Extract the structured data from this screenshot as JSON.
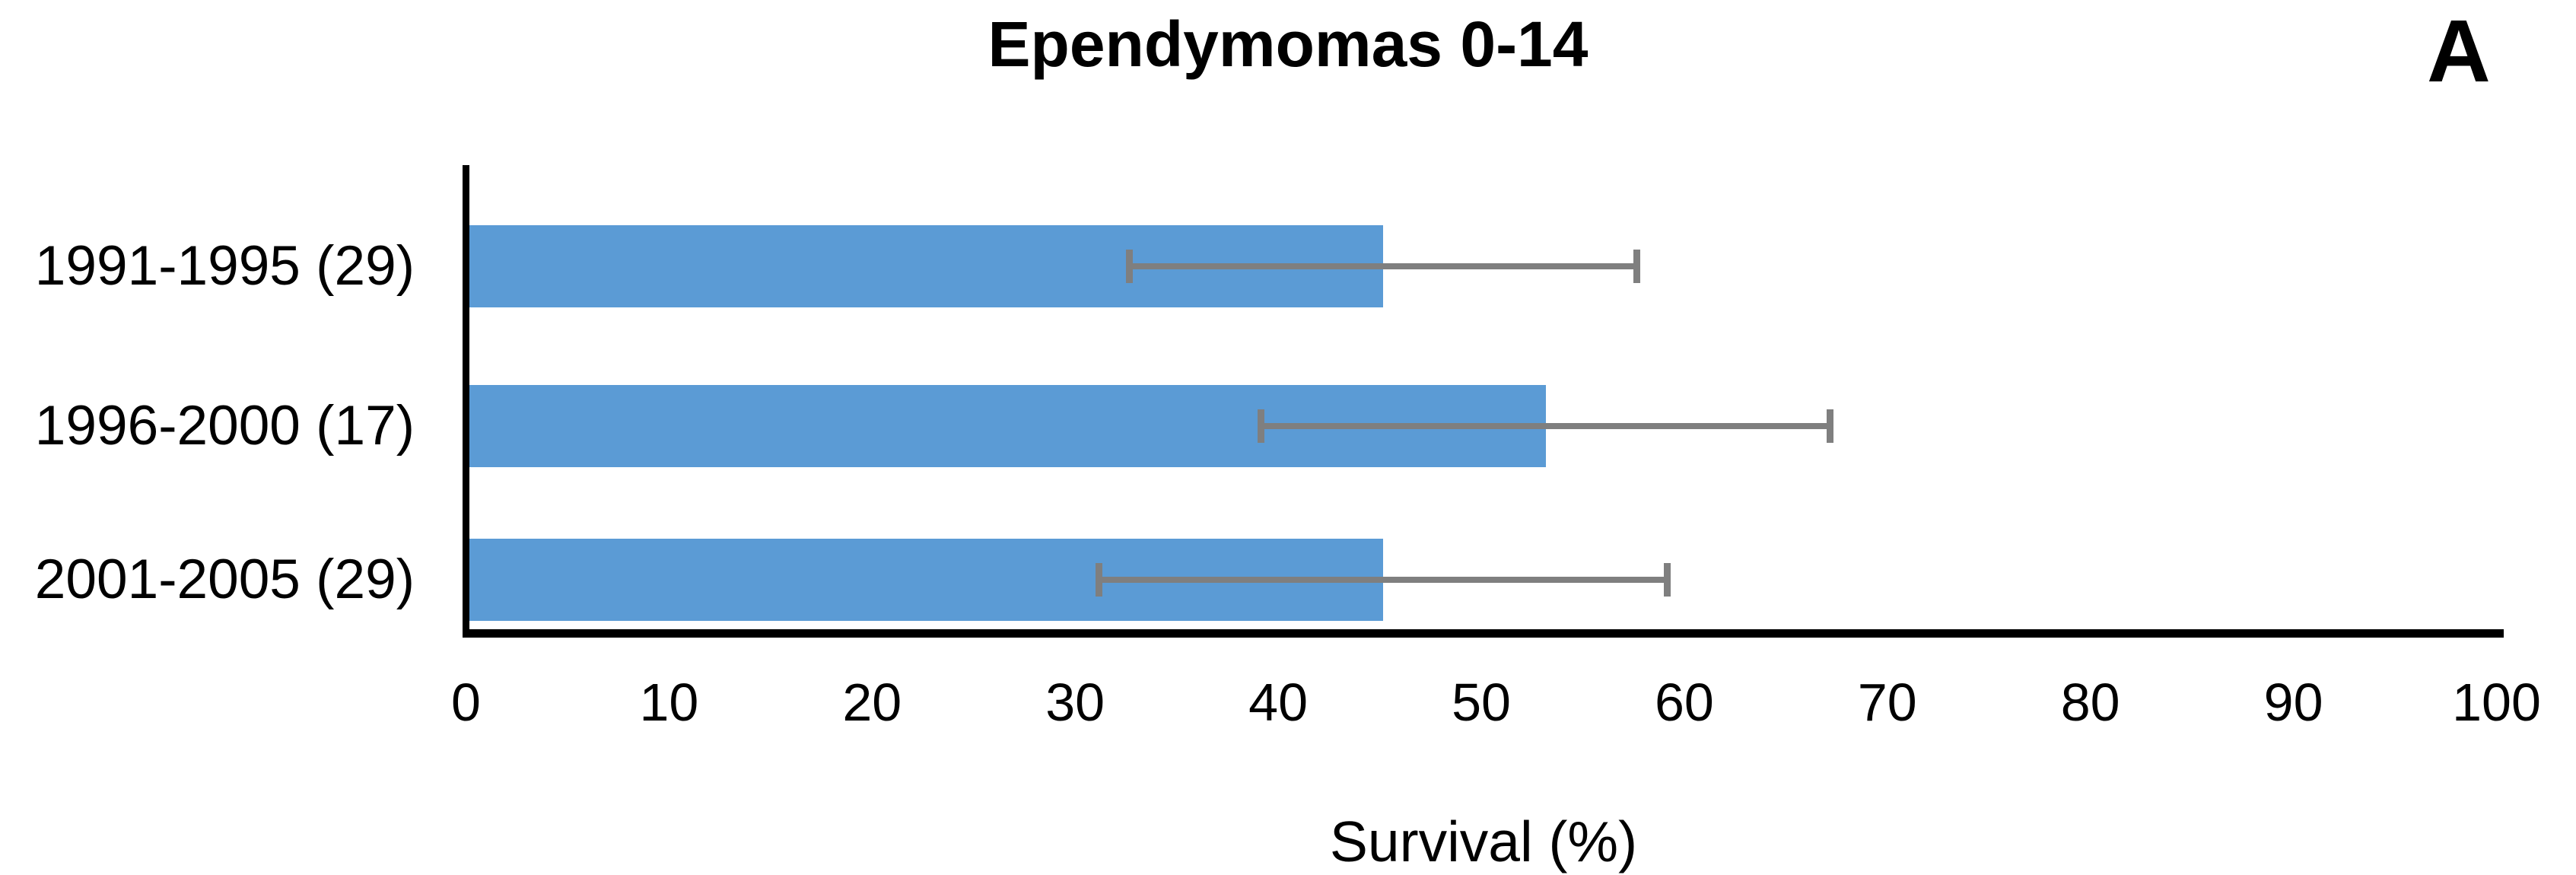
{
  "panel_label": "A",
  "chart_data": {
    "type": "bar",
    "orientation": "horizontal",
    "title": "Ependymomas 0-14",
    "xlabel": "Survival (%)",
    "ylabel": "",
    "categories": [
      "1991-1995 (29)",
      "1996-2000 (17)",
      "2001-2005 (29)"
    ],
    "series": [
      {
        "name": "Survival (%)",
        "values": [
          45,
          53,
          45
        ],
        "error_low": [
          32.5,
          39,
          31
        ],
        "error_high": [
          57.5,
          67,
          59
        ]
      }
    ],
    "xlim": [
      0,
      100
    ],
    "xticks": [
      0,
      10,
      20,
      30,
      40,
      50,
      60,
      70,
      80,
      90,
      100
    ],
    "grid": false,
    "legend": false,
    "colors": {
      "bar": "#5b9bd5",
      "error_bar": "#7f7f7f",
      "axis": "#000000",
      "text": "#000000"
    }
  }
}
